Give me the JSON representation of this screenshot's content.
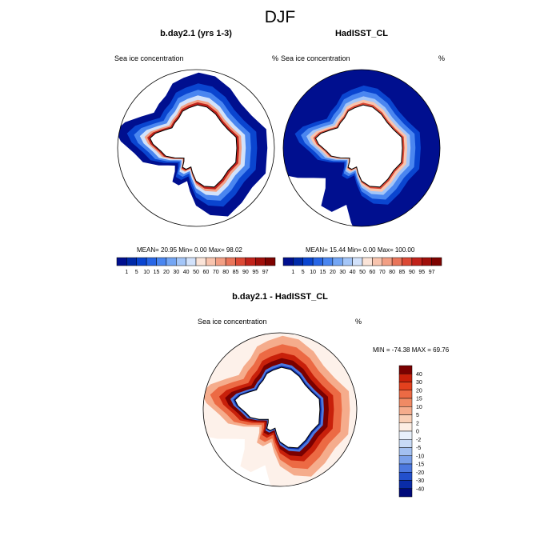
{
  "title": "DJF",
  "panels": [
    {
      "id": "model",
      "title": "b.day2.1 (yrs 1-3)",
      "variable": "Sea ice concentration",
      "units": "%",
      "stats_text": "MEAN=  20.95  Min=   0.00  Max=  98.02"
    },
    {
      "id": "obs",
      "title": "HadISST_CL",
      "variable": "Sea ice concentration",
      "units": "%",
      "stats_text": "MEAN=  15.44  Min=   0.00  Max= 100.00"
    },
    {
      "id": "diff",
      "title": "b.day2.1 - HadISST_CL",
      "variable": "Sea ice concentration",
      "units": "%",
      "stats_text": "MIN = -74.38 MAX =  69.76"
    }
  ],
  "colors": {
    "land": "#ffffff",
    "coast": "#000000"
  },
  "chart_data": [
    {
      "type": "heatmap",
      "name": "model-map",
      "projection": "south-polar-stereographic",
      "title": "b.day2.1 (yrs 1-3)",
      "label_left": "Sea ice concentration",
      "label_right": "%",
      "stats": {
        "mean": 20.95,
        "min": 0.0,
        "max": 98.02
      },
      "colorbar": {
        "levels": [
          "1",
          "5",
          "10",
          "15",
          "20",
          "30",
          "40",
          "50",
          "60",
          "70",
          "80",
          "85",
          "90",
          "95",
          "97"
        ],
        "colors": [
          "#000f8f",
          "#002aa8",
          "#0a45d0",
          "#2866e6",
          "#4a86f0",
          "#74a6f4",
          "#a4c6f8",
          "#d2e2fb",
          "#fbe4d8",
          "#f8c4ae",
          "#f29f84",
          "#e9755a",
          "#dc4935",
          "#c1221a",
          "#a00f0a",
          "#7e0300"
        ]
      }
    },
    {
      "type": "heatmap",
      "name": "obs-map",
      "projection": "south-polar-stereographic",
      "title": "HadISST_CL",
      "label_left": "Sea ice concentration",
      "label_right": "%",
      "stats": {
        "mean": 15.44,
        "min": 0.0,
        "max": 100.0
      },
      "colorbar": {
        "levels": [
          "1",
          "5",
          "10",
          "15",
          "20",
          "30",
          "40",
          "50",
          "60",
          "70",
          "80",
          "85",
          "90",
          "95",
          "97"
        ],
        "colors": [
          "#000f8f",
          "#002aa8",
          "#0a45d0",
          "#2866e6",
          "#4a86f0",
          "#74a6f4",
          "#a4c6f8",
          "#d2e2fb",
          "#fbe4d8",
          "#f8c4ae",
          "#f29f84",
          "#e9755a",
          "#dc4935",
          "#c1221a",
          "#a00f0a",
          "#7e0300"
        ]
      }
    },
    {
      "type": "heatmap",
      "name": "difference-map",
      "projection": "south-polar-stereographic",
      "title": "b.day2.1 - HadISST_CL",
      "label_left": "Sea ice concentration",
      "label_right": "%",
      "stats": {
        "min": -74.38,
        "max": 69.76
      },
      "colorbar": {
        "levels": [
          "40",
          "30",
          "20",
          "15",
          "10",
          "5",
          "2",
          "0",
          "-2",
          "-5",
          "-10",
          "-15",
          "-20",
          "-30",
          "-40"
        ],
        "colors": [
          "#7a0000",
          "#c8200a",
          "#e3411e",
          "#ec6a44",
          "#f08a64",
          "#f5ac8c",
          "#f9cfb6",
          "#fdeee4",
          "#e8f0fb",
          "#c8daf6",
          "#a3c0f1",
          "#7aa0ea",
          "#4c78df",
          "#2350cc",
          "#0a2ca8",
          "#000a7a"
        ]
      }
    }
  ]
}
